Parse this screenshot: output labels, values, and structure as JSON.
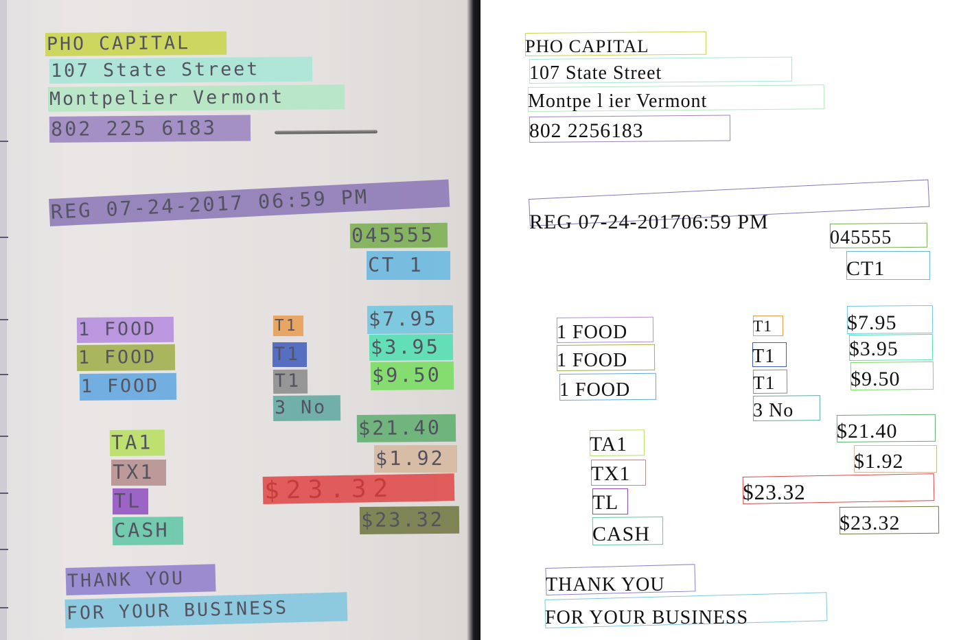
{
  "regions": [
    {
      "photo_text": "PHO CAPITAL",
      "ocr_text": "PHO CAPITAL",
      "color": "#c9d448"
    },
    {
      "photo_text": "107 State Street",
      "ocr_text": "107 State Street",
      "color": "#a6e6d6"
    },
    {
      "photo_text": "Montpelier Vermont",
      "ocr_text": "Montpe l ier Vermont",
      "color": "#b2e8c2"
    },
    {
      "photo_text": "802 225 6183",
      "ocr_text": "802 2256183",
      "color": "#9a82c0"
    },
    {
      "photo_text": "REG  07-24-2017 06:59 PM",
      "ocr_text": "REG 07-24-201706:59 PM",
      "color": "#8a76b6"
    },
    {
      "photo_text": "045555",
      "ocr_text": "045555",
      "color": "#78ae4e"
    },
    {
      "photo_text": "CT   1",
      "ocr_text": "CT1",
      "color": "#66b8e2"
    },
    {
      "photo_text": "1 FOOD",
      "ocr_text": "1 FOOD",
      "color": "#b48ae0"
    },
    {
      "photo_text": "1 FOOD",
      "ocr_text": "1 FOOD",
      "color": "#a0ae46"
    },
    {
      "photo_text": "1 FOOD",
      "ocr_text": "1 FOOD",
      "color": "#5ea6e0"
    },
    {
      "photo_text": "T1",
      "ocr_text": "T1",
      "color": "#e89c4e"
    },
    {
      "photo_text": "T1",
      "ocr_text": "T1",
      "color": "#3e5cbe"
    },
    {
      "photo_text": "T1",
      "ocr_text": "T1",
      "color": "#8a8a8a"
    },
    {
      "photo_text": "3 No",
      "ocr_text": "3 No",
      "color": "#5ea8a0"
    },
    {
      "photo_text": "$7.95",
      "ocr_text": "$7.95",
      "color": "#6ec6e2"
    },
    {
      "photo_text": "$3.95",
      "ocr_text": "$3.95",
      "color": "#4ee0b2"
    },
    {
      "photo_text": "$9.50",
      "ocr_text": "$9.50",
      "color": "#76de5e"
    },
    {
      "photo_text": "TA1",
      "ocr_text": "TA1",
      "color": "#b6e05e"
    },
    {
      "photo_text": "$21.40",
      "ocr_text": "$21.40",
      "color": "#5eae6e"
    },
    {
      "photo_text": "$1.92",
      "ocr_text": "$1.92",
      "color": "#d6b89e"
    },
    {
      "photo_text": "TX1",
      "ocr_text": "TX1",
      "color": "#b68e8e"
    },
    {
      "photo_text": "$23.32",
      "ocr_text": "$23.32",
      "color": "#e04646"
    },
    {
      "photo_text": "TL",
      "ocr_text": "TL",
      "color": "#8e4ec0"
    },
    {
      "photo_text": "$23.32",
      "ocr_text": "$23.32",
      "color": "#6e763e"
    },
    {
      "photo_text": "CASH",
      "ocr_text": "CASH",
      "color": "#5ec6a6"
    },
    {
      "photo_text": "THANK YOU",
      "ocr_text": "THANK YOU",
      "color": "#8e7ece"
    },
    {
      "photo_text": "FOR YOUR BUSINESS",
      "ocr_text": "FOR YOUR BUSINESS",
      "color": "#7ec6e0"
    }
  ]
}
